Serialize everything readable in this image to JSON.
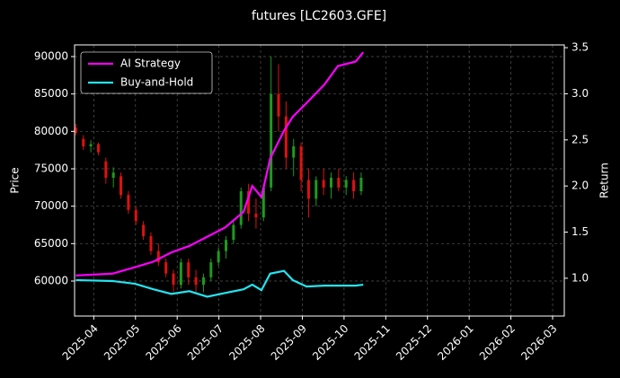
{
  "chart_data": {
    "type": "candlestick",
    "title": "futures [LC2603.GFE]",
    "ylabel": "Price",
    "y2label": "Return",
    "candles": {
      "up_color": "#1f9a1f",
      "down_color": "#e01010",
      "x": [
        -0.43,
        -0.25,
        -0.07,
        0.11,
        0.29,
        0.47,
        0.65,
        0.83,
        1.01,
        1.19,
        1.37,
        1.55,
        1.73,
        1.91,
        2.09,
        2.27,
        2.45,
        2.63,
        2.81,
        2.99,
        3.17,
        3.35,
        3.53,
        3.71,
        3.89,
        4.07,
        4.25,
        4.43,
        4.61,
        4.79,
        4.97,
        5.15,
        5.33,
        5.51,
        5.69,
        5.87,
        6.05,
        6.23,
        6.41
      ],
      "open": [
        80500,
        79000,
        78000,
        78300,
        76000,
        73800,
        74000,
        71500,
        69500,
        67500,
        66000,
        64000,
        62500,
        61000,
        59500,
        62500,
        60500,
        59500,
        60500,
        62500,
        64000,
        65500,
        67500,
        72000,
        69000,
        68500,
        72500,
        85000,
        82000,
        76500,
        78000,
        73500,
        71000,
        73500,
        72500,
        73800,
        72500,
        73500,
        72000
      ],
      "high": [
        81000,
        79500,
        78800,
        78500,
        76500,
        75200,
        74500,
        72000,
        70000,
        68000,
        66500,
        65000,
        63000,
        61500,
        63000,
        63000,
        61500,
        61000,
        63000,
        64500,
        66000,
        68000,
        72500,
        73000,
        71000,
        73000,
        90000,
        89000,
        84000,
        79000,
        78500,
        75000,
        74000,
        75000,
        74500,
        75000,
        74000,
        74500,
        74500
      ],
      "low": [
        79500,
        77500,
        77200,
        76800,
        73000,
        72500,
        71000,
        69000,
        67500,
        65500,
        63500,
        62000,
        60500,
        58500,
        59000,
        59500,
        58500,
        58500,
        60000,
        62000,
        63000,
        65000,
        67000,
        68000,
        67000,
        68000,
        72000,
        80000,
        75000,
        74000,
        72000,
        68500,
        70000,
        71500,
        71000,
        72000,
        71500,
        71000,
        71500
      ],
      "close": [
        79800,
        78000,
        78300,
        77200,
        73800,
        74500,
        71500,
        69500,
        68000,
        66000,
        64000,
        62500,
        61000,
        59500,
        62500,
        60500,
        59500,
        60500,
        62500,
        64000,
        65500,
        67500,
        72000,
        69000,
        68500,
        72500,
        85000,
        82000,
        76500,
        78000,
        73500,
        71000,
        73500,
        72500,
        73800,
        72500,
        73500,
        72000,
        73800
      ]
    },
    "x": [
      -0.43,
      0.45,
      0.99,
      1.43,
      1.86,
      2.29,
      2.72,
      3.15,
      3.59,
      3.8,
      4.02,
      4.23,
      4.56,
      4.77,
      5.1,
      5.53,
      5.85,
      6.28,
      6.46
    ],
    "series": [
      {
        "name": "AI Strategy",
        "color": "#ff00ff",
        "axis": "y2",
        "values": [
          1.03,
          1.05,
          1.12,
          1.18,
          1.28,
          1.35,
          1.45,
          1.55,
          1.72,
          2.0,
          1.88,
          2.3,
          2.6,
          2.75,
          2.9,
          3.1,
          3.3,
          3.35,
          3.45
        ]
      },
      {
        "name": "Buy-and-Hold",
        "color": "#22e5f0",
        "axis": "y2",
        "values": [
          0.98,
          0.97,
          0.94,
          0.88,
          0.83,
          0.86,
          0.8,
          0.84,
          0.88,
          0.93,
          0.87,
          1.05,
          1.08,
          0.98,
          0.91,
          0.92,
          0.92,
          0.92,
          0.93
        ]
      }
    ],
    "xlim": [
      -0.46,
      11.28
    ],
    "xticks": [
      {
        "value": 0,
        "label": "2025-04"
      },
      {
        "value": 1,
        "label": "2025-05"
      },
      {
        "value": 2,
        "label": "2025-06"
      },
      {
        "value": 3,
        "label": "2025-07"
      },
      {
        "value": 4,
        "label": "2025-08"
      },
      {
        "value": 5,
        "label": "2025-09"
      },
      {
        "value": 6,
        "label": "2025-10"
      },
      {
        "value": 7,
        "label": "2025-11"
      },
      {
        "value": 8,
        "label": "2025-12"
      },
      {
        "value": 9,
        "label": "2026-01"
      },
      {
        "value": 10,
        "label": "2026-02"
      },
      {
        "value": 11,
        "label": "2026-03"
      }
    ],
    "ylim": [
      55320,
      91560
    ],
    "yticks": [
      60000,
      65000,
      70000,
      75000,
      80000,
      85000,
      90000
    ],
    "y2lim": [
      0.59,
      3.53
    ],
    "y2ticks": [
      {
        "value": 1.0,
        "label": "1.0"
      },
      1.5,
      {
        "value": 2.0,
        "label": "2.0"
      },
      2.5,
      {
        "value": 3.0,
        "label": "3.0"
      },
      3.5
    ],
    "grid": true,
    "legend": "upper left"
  }
}
